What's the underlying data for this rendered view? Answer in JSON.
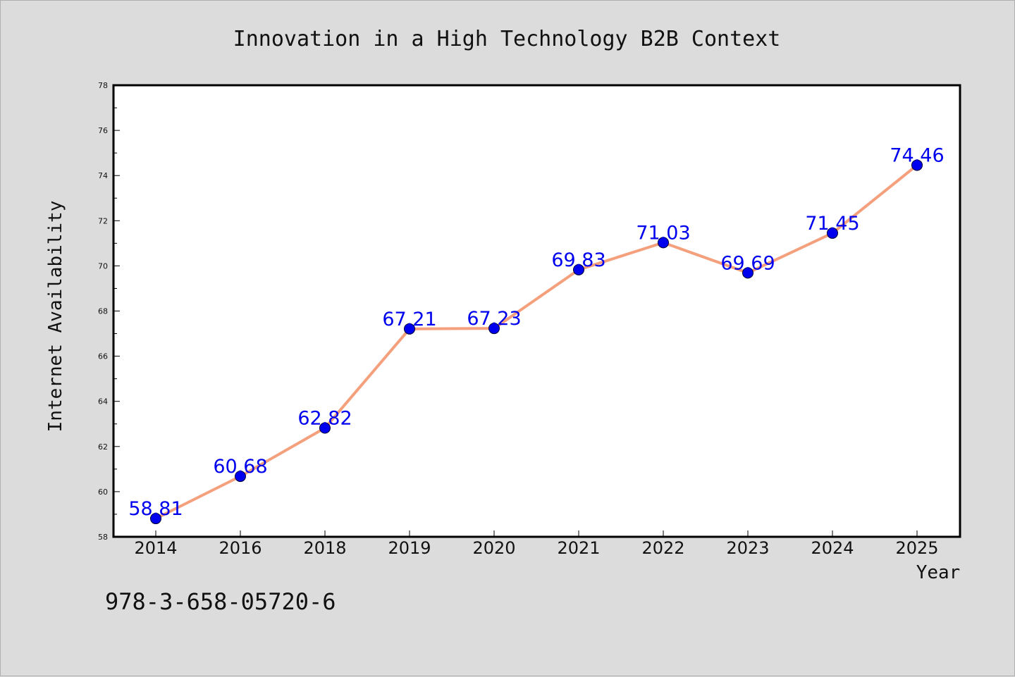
{
  "chart_data": {
    "type": "line",
    "title": "Innovation in a High Technology B2B Context",
    "xlabel": "Year",
    "ylabel": "Internet Availability",
    "categories": [
      "2014",
      "2016",
      "2018",
      "2019",
      "2020",
      "2021",
      "2022",
      "2023",
      "2024",
      "2025"
    ],
    "series": [
      {
        "values": [
          58.81,
          60.68,
          62.82,
          67.21,
          67.23,
          69.83,
          71.03,
          69.69,
          71.45,
          74.46
        ],
        "data_labels": [
          "58.81",
          "60.68",
          "62.82",
          "67.21",
          "67.23",
          "69.83",
          "71.03",
          "69.69",
          "71.45",
          "74.46"
        ],
        "line_color": "#f4a07c",
        "marker_color": "#0000ee",
        "label_color": "#0000ee"
      }
    ],
    "ylim": [
      58,
      78
    ],
    "yticks": [
      "58",
      "60",
      "62",
      "64",
      "66",
      "68",
      "70",
      "72",
      "74",
      "76",
      "78"
    ],
    "grid": false,
    "legend": "none"
  },
  "footnote": "978-3-658-05720-6",
  "colors": {
    "background": "#dcdcdc",
    "plot_area": "#ffffff",
    "line": "#f4a07c",
    "marker": "#0000ee",
    "data_label": "#0000ee"
  }
}
